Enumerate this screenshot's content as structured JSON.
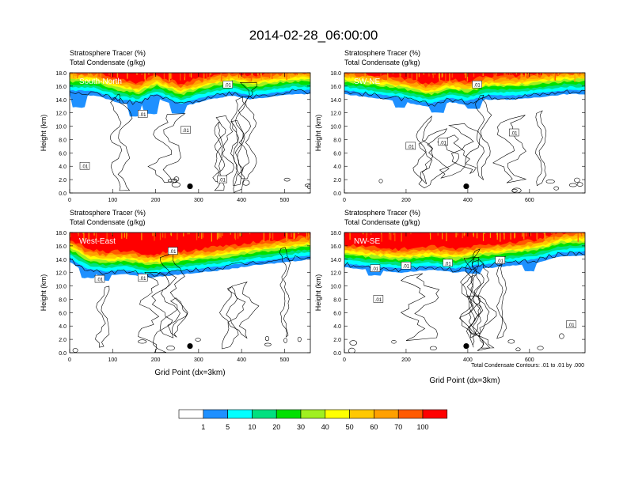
{
  "figure": {
    "title": "2014-02-28_06:00:00",
    "contour_note": "Total Condensate Contours: .01 to .01 by .000"
  },
  "colors": {
    "bins": [
      "#ffffff",
      "#1e90ff",
      "#00ffff",
      "#00e080",
      "#00e000",
      "#a0f020",
      "#ffff00",
      "#ffc800",
      "#ffa000",
      "#ff5a00",
      "#ff0000"
    ],
    "contour": "#000000"
  },
  "colorbar": {
    "labels": [
      "1",
      "5",
      "10",
      "20",
      "30",
      "40",
      "50",
      "60",
      "70",
      "100"
    ]
  },
  "chart_data": [
    {
      "type": "heatmap",
      "title": "Stratosphere Tracer   (%)",
      "subtitle": "Total Condensate   (g/kg)",
      "panel_label": "South-North",
      "xlabel": "",
      "ylabel": "Height (km)",
      "xlim": [
        0,
        560
      ],
      "ylim": [
        0,
        18
      ],
      "xticks": [
        "0",
        "100",
        "200",
        "300",
        "400",
        "500"
      ],
      "xtick_values": [
        0,
        100,
        200,
        300,
        400,
        500
      ],
      "yticks": [
        "0.0",
        "2.0",
        "4.0",
        "6.0",
        "8.0",
        "10.0",
        "12.0",
        "14.0",
        "16.0",
        "18.0"
      ],
      "tracer_base_km": [
        [
          0,
          14.8
        ],
        [
          60,
          14.6
        ],
        [
          120,
          13.4
        ],
        [
          160,
          13.0
        ],
        [
          200,
          14.2
        ],
        [
          260,
          12.8
        ],
        [
          300,
          13.6
        ],
        [
          340,
          14.2
        ],
        [
          380,
          14.6
        ],
        [
          420,
          14.0
        ],
        [
          470,
          14.4
        ],
        [
          520,
          14.8
        ],
        [
          560,
          14.8
        ]
      ],
      "blue_dips": [
        [
          20,
          12.8
        ],
        [
          150,
          11.5
        ],
        [
          190,
          11.8
        ],
        [
          250,
          11.9
        ]
      ],
      "contour_labels": [
        {
          "text": ".01",
          "x": 35,
          "y": 4.0
        },
        {
          "text": ".01",
          "x": 170,
          "y": 11.8
        },
        {
          "text": ".01",
          "x": 270,
          "y": 9.4
        },
        {
          "text": ".01",
          "x": 355,
          "y": 2.0
        },
        {
          "text": ".01",
          "x": 368,
          "y": 16.2
        }
      ],
      "marker": {
        "x": 280,
        "y": 1.0
      }
    },
    {
      "type": "heatmap",
      "title": "Stratosphere Tracer   (%)",
      "subtitle": "Total Condensate   (g/kg)",
      "panel_label": "SW-NE",
      "xlabel": "",
      "ylabel": "Height (km)",
      "xlim": [
        0,
        780
      ],
      "ylim": [
        0,
        18
      ],
      "xticks": [
        "0",
        "200",
        "400",
        "600"
      ],
      "xtick_values": [
        0,
        200,
        400,
        600
      ],
      "yticks": [
        "0.0",
        "2.0",
        "4.0",
        "6.0",
        "8.0",
        "10.0",
        "12.0",
        "14.0",
        "16.0",
        "18.0"
      ],
      "tracer_base_km": [
        [
          0,
          14.8
        ],
        [
          100,
          14.2
        ],
        [
          200,
          13.6
        ],
        [
          280,
          12.8
        ],
        [
          340,
          13.6
        ],
        [
          400,
          13.2
        ],
        [
          460,
          14.0
        ],
        [
          560,
          14.0
        ],
        [
          640,
          14.4
        ],
        [
          720,
          14.8
        ],
        [
          780,
          14.8
        ]
      ],
      "blue_dips": [
        [
          180,
          12.8
        ],
        [
          300,
          12.0
        ],
        [
          420,
          12.6
        ]
      ],
      "contour_labels": [
        {
          "text": ".01",
          "x": 430,
          "y": 16.2
        },
        {
          "text": ".01",
          "x": 215,
          "y": 7.0
        },
        {
          "text": ".01",
          "x": 320,
          "y": 7.6
        },
        {
          "text": ".01",
          "x": 550,
          "y": 9.0
        }
      ],
      "marker": {
        "x": 395,
        "y": 1.0
      }
    },
    {
      "type": "heatmap",
      "title": "Stratosphere Tracer   (%)",
      "subtitle": "Total Condensate   (g/kg)",
      "panel_label": "West-East",
      "xlabel": "Grid Point (dx=3km)",
      "ylabel": "Height (km)",
      "xlim": [
        0,
        560
      ],
      "ylim": [
        0,
        18
      ],
      "xticks": [
        "0",
        "100",
        "200",
        "300",
        "400",
        "500"
      ],
      "xtick_values": [
        0,
        100,
        200,
        300,
        400,
        500
      ],
      "yticks": [
        "0.0",
        "2.0",
        "4.0",
        "6.0",
        "8.0",
        "10.0",
        "12.0",
        "14.0",
        "16.0",
        "18.0"
      ],
      "tracer_base_km": [
        [
          0,
          13.6
        ],
        [
          40,
          12.0
        ],
        [
          80,
          11.6
        ],
        [
          130,
          11.8
        ],
        [
          180,
          11.2
        ],
        [
          240,
          11.6
        ],
        [
          300,
          12.0
        ],
        [
          360,
          12.4
        ],
        [
          420,
          13.0
        ],
        [
          480,
          13.4
        ],
        [
          560,
          14.0
        ]
      ],
      "blue_dips": [
        [
          40,
          11.2
        ],
        [
          80,
          10.8
        ]
      ],
      "contour_labels": [
        {
          "text": ".01",
          "x": 240,
          "y": 15.2
        },
        {
          "text": ".01",
          "x": 70,
          "y": 11.0
        },
        {
          "text": ".01",
          "x": 170,
          "y": 11.2
        }
      ],
      "marker": {
        "x": 280,
        "y": 1.0
      }
    },
    {
      "type": "heatmap",
      "title": "Stratosphere Tracer   (%)",
      "subtitle": "Total Condensate   (g/kg)",
      "panel_label": "NW-SE",
      "xlabel": "Grid Point (dx=3km)",
      "ylabel": "Height (km)",
      "xlim": [
        0,
        780
      ],
      "ylim": [
        0,
        18
      ],
      "xticks": [
        "0",
        "200",
        "400",
        "600"
      ],
      "xtick_values": [
        0,
        200,
        400,
        600
      ],
      "yticks": [
        "0.0",
        "2.0",
        "4.0",
        "6.0",
        "8.0",
        "10.0",
        "12.0",
        "14.0",
        "16.0",
        "18.0"
      ],
      "tracer_base_km": [
        [
          0,
          12.8
        ],
        [
          80,
          12.4
        ],
        [
          180,
          12.0
        ],
        [
          280,
          12.4
        ],
        [
          360,
          12.0
        ],
        [
          440,
          12.6
        ],
        [
          540,
          13.0
        ],
        [
          620,
          13.4
        ],
        [
          700,
          14.4
        ],
        [
          780,
          14.6
        ]
      ],
      "blue_dips": [
        [
          100,
          11.6
        ],
        [
          420,
          11.8
        ],
        [
          600,
          12.2
        ]
      ],
      "contour_labels": [
        {
          "text": ".01",
          "x": 200,
          "y": 13.0
        },
        {
          "text": ".01",
          "x": 335,
          "y": 13.4
        },
        {
          "text": ".01",
          "x": 505,
          "y": 13.8
        },
        {
          "text": ".01",
          "x": 100,
          "y": 12.6
        },
        {
          "text": ".01",
          "x": 110,
          "y": 8.0
        },
        {
          "text": ".01",
          "x": 735,
          "y": 4.2
        }
      ],
      "marker": {
        "x": 395,
        "y": 1.0
      }
    }
  ]
}
